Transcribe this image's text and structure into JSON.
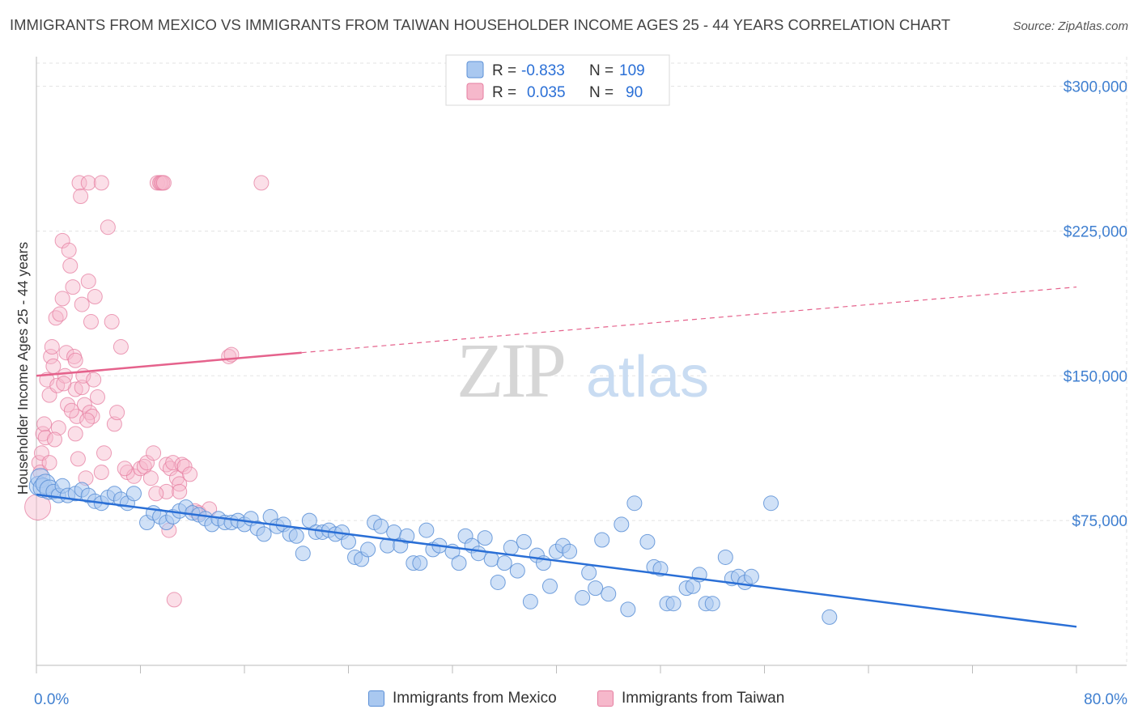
{
  "title": "IMMIGRANTS FROM MEXICO VS IMMIGRANTS FROM TAIWAN HOUSEHOLDER INCOME AGES 25 - 44 YEARS CORRELATION CHART",
  "source": "Source: ZipAtlas.com",
  "watermark": {
    "zip": "ZIP",
    "atlas": "atlas"
  },
  "colors": {
    "mexico_fill": "#a9c8f0",
    "mexico_stroke": "#5b8fd6",
    "mexico_line": "#2a6fd6",
    "taiwan_fill": "#f6b8cb",
    "taiwan_stroke": "#e57ea0",
    "taiwan_line": "#e5628c",
    "tick_label": "#3f7fd0",
    "grid": "#e3e3e3"
  },
  "legend_top": {
    "rows": [
      {
        "r_label": "R =",
        "r_value": "-0.833",
        "n_label": "N =",
        "n_value": "109"
      },
      {
        "r_label": "R =",
        "r_value": "0.035",
        "n_label": "N =",
        "n_value": "90"
      }
    ]
  },
  "legend_bottom": {
    "mexico": "Immigrants from Mexico",
    "taiwan": "Immigrants from Taiwan"
  },
  "chart_data": {
    "type": "scatter",
    "xlabel": "",
    "ylabel": "Householder Income Ages 25 - 44 years",
    "xlim": [
      0,
      80
    ],
    "ylim": [
      0,
      312000
    ],
    "x_tick_labels": [
      "0.0%",
      "80.0%"
    ],
    "y_ticks": [
      {
        "value": 75000,
        "label": "$75,000"
      },
      {
        "value": 150000,
        "label": "$150,000"
      },
      {
        "value": 225000,
        "label": "$225,000"
      },
      {
        "value": 300000,
        "label": "$300,000"
      }
    ],
    "grid": "horizontal dashed",
    "series": [
      {
        "name": "Immigrants from Mexico",
        "trend": {
          "x": [
            0,
            80
          ],
          "y": [
            88500,
            20000
          ],
          "style": "solid"
        },
        "points": [
          [
            0.2,
            93000
          ],
          [
            0.3,
            97000
          ],
          [
            0.5,
            92000
          ],
          [
            0.7,
            94000
          ],
          [
            1,
            91000
          ],
          [
            1.3,
            90000
          ],
          [
            1.7,
            88000
          ],
          [
            2,
            93000
          ],
          [
            2.4,
            88000
          ],
          [
            3,
            89000
          ],
          [
            3.5,
            91000
          ],
          [
            4,
            88000
          ],
          [
            4.5,
            85000
          ],
          [
            5,
            84000
          ],
          [
            5.5,
            87000
          ],
          [
            6,
            89000
          ],
          [
            6.5,
            86000
          ],
          [
            7,
            84000
          ],
          [
            7.5,
            89000
          ],
          [
            8.5,
            74000
          ],
          [
            9,
            79000
          ],
          [
            9.5,
            77000
          ],
          [
            10,
            74000
          ],
          [
            10.5,
            77000
          ],
          [
            11,
            80000
          ],
          [
            11.5,
            82000
          ],
          [
            12,
            79000
          ],
          [
            12.5,
            78000
          ],
          [
            13,
            76000
          ],
          [
            13.5,
            73000
          ],
          [
            14,
            76000
          ],
          [
            14.5,
            74000
          ],
          [
            15,
            74000
          ],
          [
            15.5,
            75000
          ],
          [
            16,
            73000
          ],
          [
            16.5,
            76000
          ],
          [
            17,
            71000
          ],
          [
            17.5,
            68000
          ],
          [
            18,
            77000
          ],
          [
            18.5,
            72000
          ],
          [
            19,
            73000
          ],
          [
            19.5,
            68000
          ],
          [
            20,
            67000
          ],
          [
            20.5,
            58000
          ],
          [
            21,
            75000
          ],
          [
            21.5,
            69000
          ],
          [
            22,
            69000
          ],
          [
            22.5,
            70000
          ],
          [
            23,
            68000
          ],
          [
            23.5,
            69000
          ],
          [
            24,
            64000
          ],
          [
            24.5,
            56000
          ],
          [
            25,
            55000
          ],
          [
            25.5,
            60000
          ],
          [
            26,
            74000
          ],
          [
            26.5,
            72000
          ],
          [
            27,
            62000
          ],
          [
            27.5,
            69000
          ],
          [
            28,
            62000
          ],
          [
            28.5,
            67000
          ],
          [
            29,
            53000
          ],
          [
            29.5,
            53000
          ],
          [
            30,
            70000
          ],
          [
            30.5,
            60000
          ],
          [
            31,
            62000
          ],
          [
            32,
            59000
          ],
          [
            32.5,
            53000
          ],
          [
            33,
            67000
          ],
          [
            33.5,
            62000
          ],
          [
            34,
            58000
          ],
          [
            34.5,
            66000
          ],
          [
            35,
            55000
          ],
          [
            35.5,
            43000
          ],
          [
            36,
            53000
          ],
          [
            36.5,
            61000
          ],
          [
            37,
            49000
          ],
          [
            37.5,
            64000
          ],
          [
            38,
            33000
          ],
          [
            38.5,
            57000
          ],
          [
            39,
            53000
          ],
          [
            39.5,
            41000
          ],
          [
            40,
            59000
          ],
          [
            40.5,
            62000
          ],
          [
            41,
            59000
          ],
          [
            42,
            35000
          ],
          [
            42.5,
            48000
          ],
          [
            43,
            40000
          ],
          [
            43.5,
            65000
          ],
          [
            44,
            37000
          ],
          [
            45,
            73000
          ],
          [
            45.5,
            29000
          ],
          [
            46,
            84000
          ],
          [
            47,
            64000
          ],
          [
            47.5,
            51000
          ],
          [
            48,
            50000
          ],
          [
            48.5,
            32000
          ],
          [
            49,
            32000
          ],
          [
            50,
            40000
          ],
          [
            50.5,
            41000
          ],
          [
            51,
            47000
          ],
          [
            51.5,
            32000
          ],
          [
            52,
            32000
          ],
          [
            53,
            56000
          ],
          [
            53.5,
            45000
          ],
          [
            54,
            46000
          ],
          [
            54.5,
            43000
          ],
          [
            55,
            46000
          ],
          [
            56.5,
            84000
          ],
          [
            61,
            25000
          ]
        ]
      },
      {
        "name": "Immigrants from Taiwan",
        "trend": {
          "x": [
            0,
            20.4,
            80
          ],
          "y": [
            150000,
            162000,
            196000
          ],
          "style": "solid then dashed"
        },
        "points": [
          [
            0.1,
            82000
          ],
          [
            0.2,
            105000
          ],
          [
            0.3,
            100000
          ],
          [
            0.4,
            110000
          ],
          [
            0.5,
            120000
          ],
          [
            0.6,
            125000
          ],
          [
            0.7,
            118000
          ],
          [
            0.8,
            148000
          ],
          [
            1,
            140000
          ],
          [
            1.1,
            160000
          ],
          [
            1.2,
            165000
          ],
          [
            1.3,
            155000
          ],
          [
            1.5,
            180000
          ],
          [
            1.6,
            145000
          ],
          [
            1.7,
            123000
          ],
          [
            1.8,
            182000
          ],
          [
            2,
            190000
          ],
          [
            2,
            220000
          ],
          [
            2.2,
            150000
          ],
          [
            2.3,
            162000
          ],
          [
            2.4,
            135000
          ],
          [
            2.5,
            215000
          ],
          [
            2.6,
            207000
          ],
          [
            2.8,
            196000
          ],
          [
            2.9,
            160000
          ],
          [
            3,
            158000
          ],
          [
            3,
            143000
          ],
          [
            3,
            120000
          ],
          [
            3.1,
            129000
          ],
          [
            3.2,
            107000
          ],
          [
            3.3,
            250000
          ],
          [
            3.4,
            243000
          ],
          [
            3.5,
            187000
          ],
          [
            3.5,
            144000
          ],
          [
            3.6,
            150000
          ],
          [
            3.7,
            135000
          ],
          [
            3.8,
            97000
          ],
          [
            4,
            250000
          ],
          [
            4,
            199000
          ],
          [
            4.1,
            131000
          ],
          [
            4.2,
            178000
          ],
          [
            4.3,
            129000
          ],
          [
            4.5,
            191000
          ],
          [
            4.7,
            139000
          ],
          [
            5,
            100000
          ],
          [
            5,
            250000
          ],
          [
            5.2,
            110000
          ],
          [
            5.5,
            227000
          ],
          [
            5.8,
            178000
          ],
          [
            6,
            125000
          ],
          [
            6.2,
            131000
          ],
          [
            6.5,
            165000
          ],
          [
            7,
            100000
          ],
          [
            7.5,
            98000
          ],
          [
            8,
            102000
          ],
          [
            8.3,
            103000
          ],
          [
            8.5,
            105000
          ],
          [
            8.8,
            97000
          ],
          [
            9,
            110000
          ],
          [
            9.3,
            250000
          ],
          [
            9.5,
            250000
          ],
          [
            9.6,
            250000
          ],
          [
            9.7,
            250000
          ],
          [
            9.8,
            250000
          ],
          [
            10,
            104000
          ],
          [
            10,
            90000
          ],
          [
            10.2,
            70000
          ],
          [
            10.3,
            102000
          ],
          [
            10.5,
            105000
          ],
          [
            10.6,
            34000
          ],
          [
            10.8,
            97000
          ],
          [
            11,
            94000
          ],
          [
            11,
            90000
          ],
          [
            11.2,
            104000
          ],
          [
            11.4,
            103000
          ],
          [
            11.8,
            99000
          ],
          [
            12.2,
            80000
          ],
          [
            12.5,
            79000
          ],
          [
            13.3,
            81000
          ],
          [
            14.8,
            160000
          ],
          [
            15,
            161000
          ],
          [
            17.3,
            250000
          ],
          [
            1,
            105000
          ],
          [
            1.4,
            117000
          ],
          [
            2.1,
            146000
          ],
          [
            2.7,
            132000
          ],
          [
            3.9,
            127000
          ],
          [
            4.4,
            148000
          ],
          [
            6.8,
            102000
          ],
          [
            9.2,
            89000
          ]
        ]
      }
    ]
  }
}
